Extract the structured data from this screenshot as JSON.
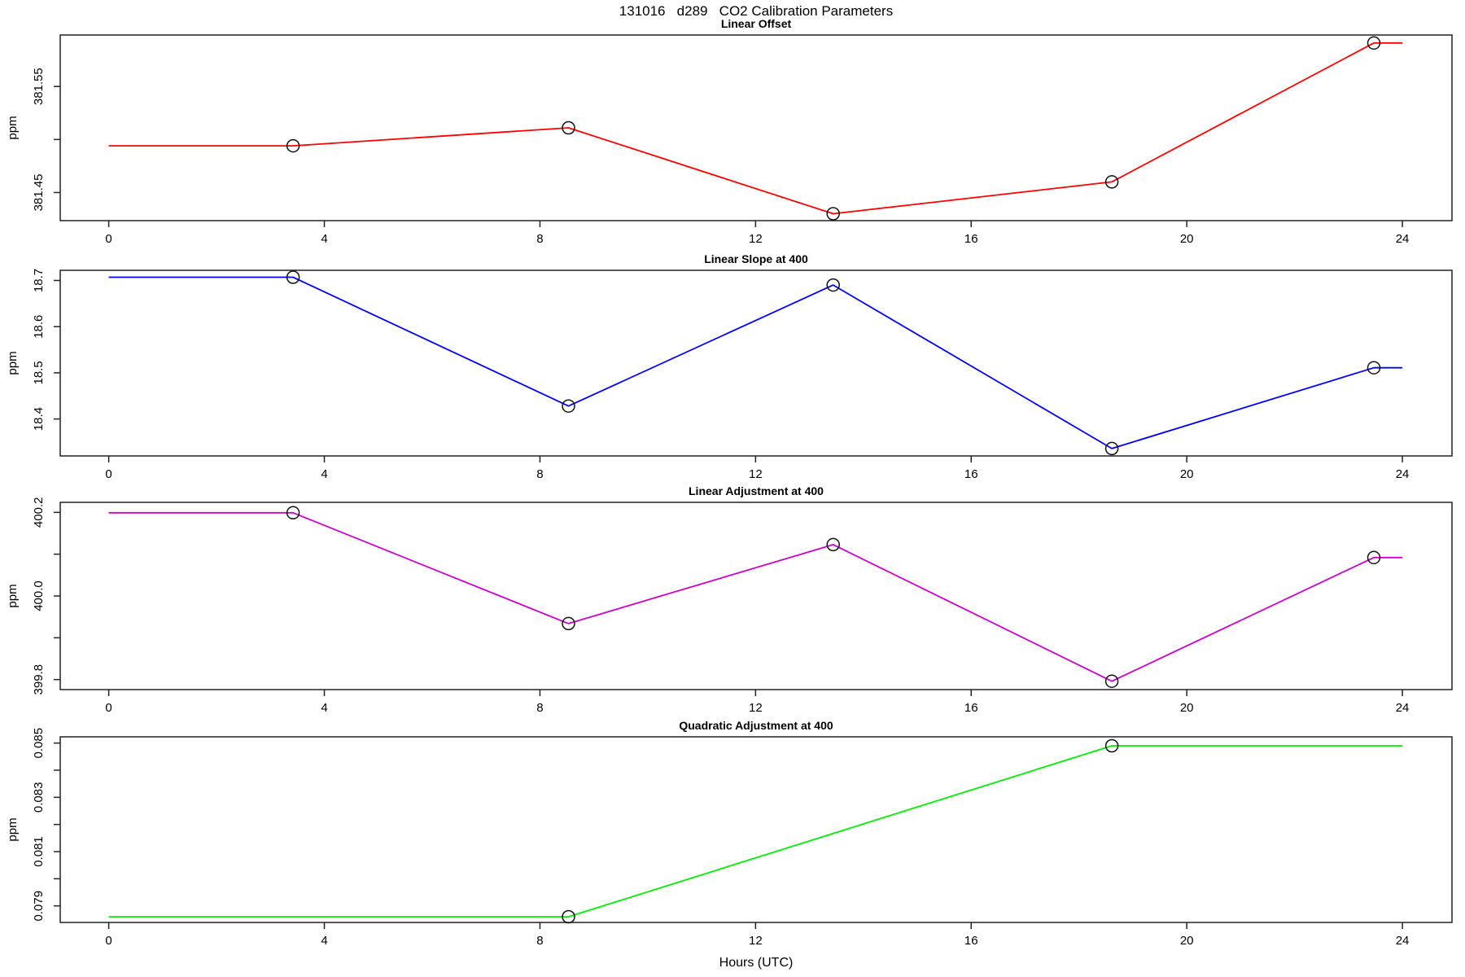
{
  "main_title": "131016   d289   CO2 Calibration Parameters",
  "xlabel": "Hours (UTC)",
  "chart_data": [
    {
      "type": "line",
      "title": "Linear Offset",
      "ylabel": "ppm",
      "color": "#ff0000",
      "xlim": [
        -0.9,
        24.92
      ],
      "ylim": [
        381.4235,
        381.5985
      ],
      "x_ticks": [
        0,
        4,
        8,
        12,
        16,
        20,
        24
      ],
      "y_ticks": [
        {
          "v": 381.45,
          "label": "381.45"
        },
        {
          "v": 381.5,
          "label": ""
        },
        {
          "v": 381.55,
          "label": "381.55"
        }
      ],
      "line": {
        "x": [
          0,
          3.42,
          8.53,
          13.44,
          18.61,
          23.47,
          24
        ],
        "y": [
          381.494,
          381.494,
          381.511,
          381.43,
          381.46,
          381.591,
          381.591
        ]
      },
      "points": {
        "x": [
          3.42,
          8.53,
          13.44,
          18.61,
          23.47
        ],
        "y": [
          381.494,
          381.511,
          381.43,
          381.46,
          381.591
        ]
      }
    },
    {
      "type": "line",
      "title": "Linear Slope at 400",
      "ylabel": "ppm",
      "color": "#0000ff",
      "xlim": [
        -0.9,
        24.92
      ],
      "ylim": [
        18.32,
        18.722
      ],
      "x_ticks": [
        0,
        4,
        8,
        12,
        16,
        20,
        24
      ],
      "y_ticks": [
        {
          "v": 18.4,
          "label": "18.4"
        },
        {
          "v": 18.5,
          "label": "18.5"
        },
        {
          "v": 18.6,
          "label": "18.6"
        },
        {
          "v": 18.7,
          "label": "18.7"
        }
      ],
      "line": {
        "x": [
          0,
          3.42,
          8.53,
          13.44,
          18.61,
          23.47,
          24
        ],
        "y": [
          18.707,
          18.707,
          18.428,
          18.69,
          18.336,
          18.511,
          18.511
        ]
      },
      "points": {
        "x": [
          3.42,
          8.53,
          13.44,
          18.61,
          23.47
        ],
        "y": [
          18.707,
          18.428,
          18.69,
          18.336,
          18.511
        ]
      }
    },
    {
      "type": "line",
      "title": "Linear Adjustment at 400",
      "ylabel": "ppm",
      "color": "#cc00cc",
      "xlim": [
        -0.9,
        24.92
      ],
      "ylim": [
        399.776,
        400.224
      ],
      "x_ticks": [
        0,
        4,
        8,
        12,
        16,
        20,
        24
      ],
      "y_ticks": [
        {
          "v": 399.8,
          "label": "399.8"
        },
        {
          "v": 399.9,
          "label": ""
        },
        {
          "v": 400.0,
          "label": "400.0"
        },
        {
          "v": 400.1,
          "label": ""
        },
        {
          "v": 400.2,
          "label": "400.2"
        }
      ],
      "line": {
        "x": [
          0,
          3.42,
          8.53,
          13.44,
          18.61,
          23.47,
          24
        ],
        "y": [
          400.199,
          400.199,
          399.934,
          400.123,
          399.796,
          400.092,
          400.092
        ]
      },
      "points": {
        "x": [
          3.42,
          8.53,
          13.44,
          18.61,
          23.47
        ],
        "y": [
          400.199,
          399.934,
          400.123,
          399.796,
          400.092
        ]
      }
    },
    {
      "type": "line",
      "title": "Quadratic Adjustment at 400",
      "ylabel": "ppm",
      "color": "#00ee00",
      "xlim": [
        -0.9,
        24.92
      ],
      "ylim": [
        0.07839,
        0.08523
      ],
      "x_ticks": [
        0,
        4,
        8,
        12,
        16,
        20,
        24
      ],
      "y_ticks": [
        {
          "v": 0.079,
          "label": "0.079"
        },
        {
          "v": 0.08,
          "label": ""
        },
        {
          "v": 0.081,
          "label": "0.081"
        },
        {
          "v": 0.082,
          "label": ""
        },
        {
          "v": 0.083,
          "label": "0.083"
        },
        {
          "v": 0.084,
          "label": ""
        },
        {
          "v": 0.085,
          "label": "0.085"
        }
      ],
      "line": {
        "x": [
          0,
          8.53,
          18.61,
          24
        ],
        "y": [
          0.0786,
          0.0786,
          0.0849,
          0.0849
        ]
      },
      "points": {
        "x": [
          8.53,
          18.61
        ],
        "y": [
          0.0786,
          0.0849
        ]
      }
    }
  ]
}
